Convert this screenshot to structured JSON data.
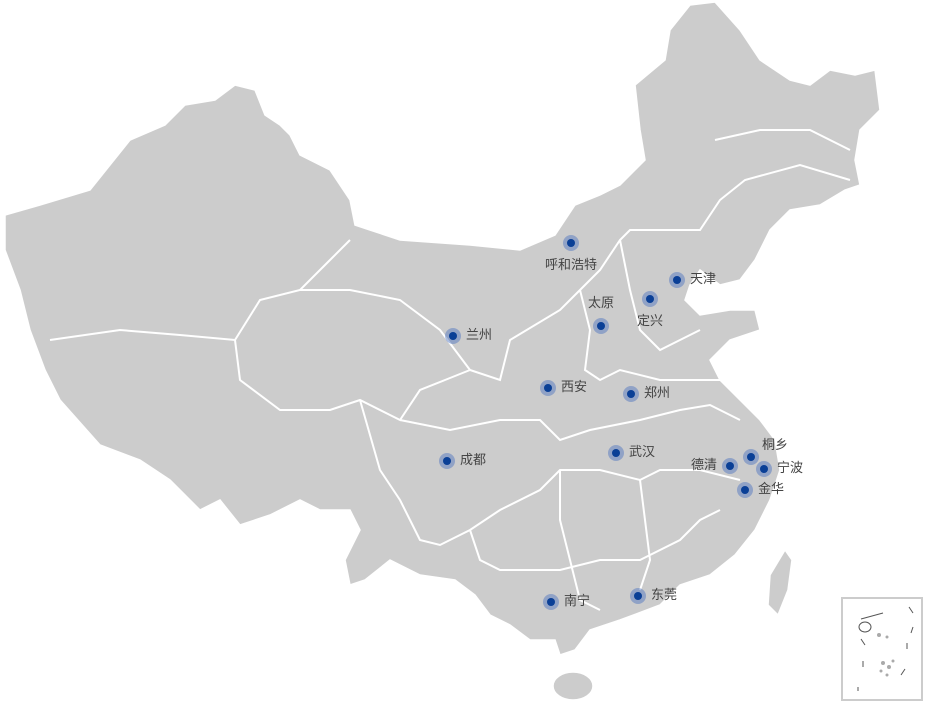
{
  "map": {
    "region": "China",
    "land_color": "#cccccc",
    "border_color": "#ffffff",
    "marker_color": "#0a3f96",
    "marker_halo_color": "#7f9fd0",
    "cities": [
      {
        "id": "hohhot",
        "name": "呼和浩特"
      },
      {
        "id": "tianjin",
        "name": "天津"
      },
      {
        "id": "dingxing",
        "name": "定兴"
      },
      {
        "id": "taiyuan",
        "name": "太原"
      },
      {
        "id": "lanzhou",
        "name": "兰州"
      },
      {
        "id": "xian",
        "name": "西安"
      },
      {
        "id": "zhengzhou",
        "name": "郑州"
      },
      {
        "id": "wuhan",
        "name": "武汉"
      },
      {
        "id": "chengdu",
        "name": "成都"
      },
      {
        "id": "tongxiang",
        "name": "桐乡"
      },
      {
        "id": "deqing",
        "name": "德清"
      },
      {
        "id": "ningbo",
        "name": "宁波"
      },
      {
        "id": "jinhua",
        "name": "金华"
      },
      {
        "id": "nanning",
        "name": "南宁"
      },
      {
        "id": "dongguan",
        "name": "东莞"
      }
    ]
  }
}
